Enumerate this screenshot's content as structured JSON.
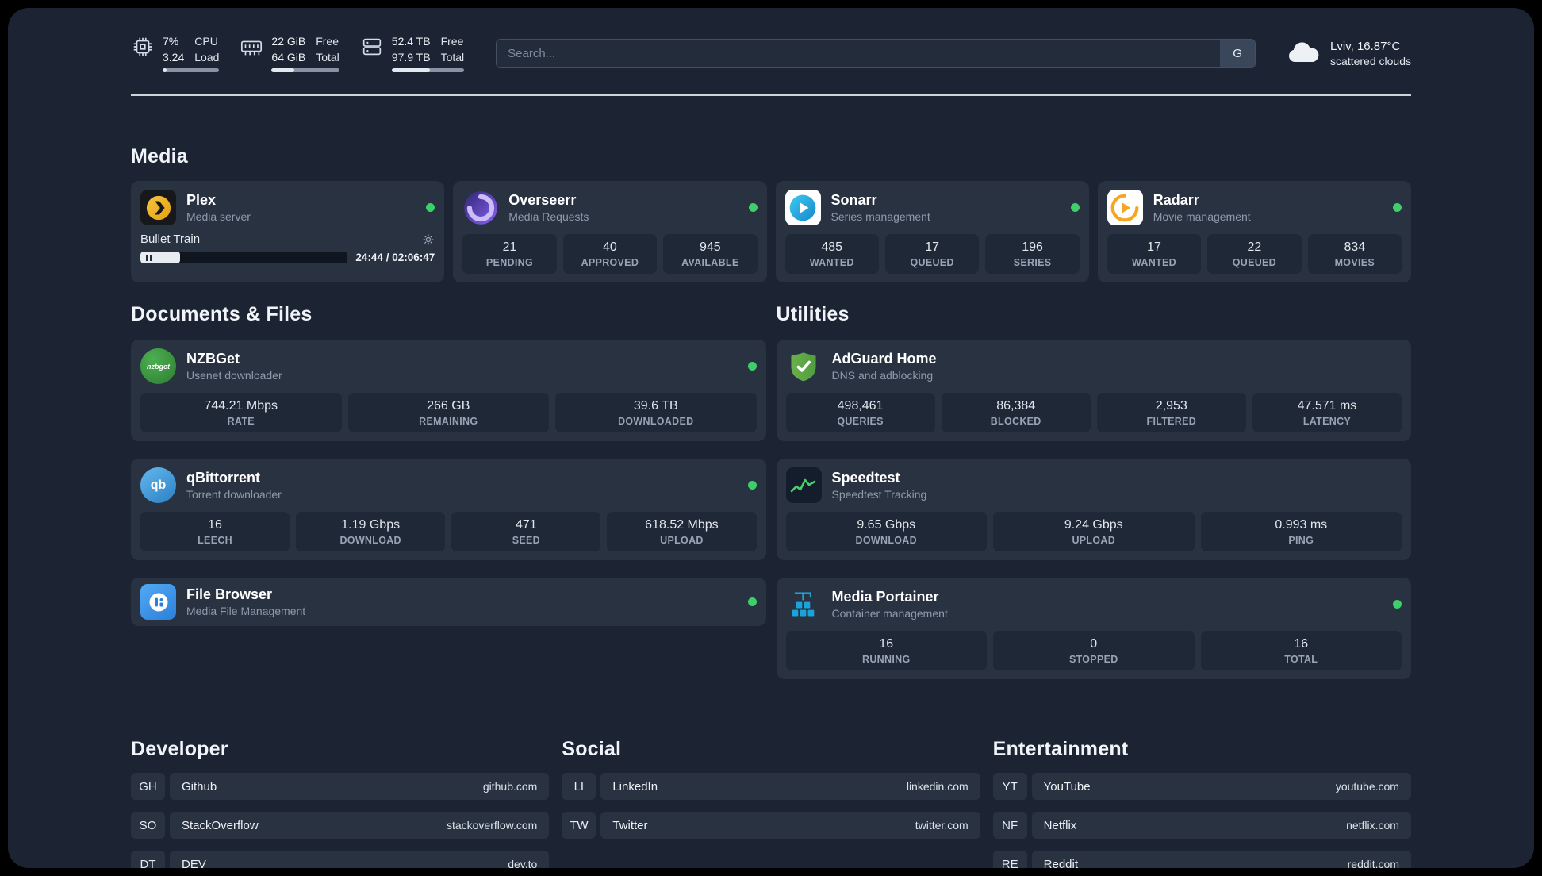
{
  "theme": {
    "panel_bg": "#1c2433",
    "card_bg": "#293241",
    "stat_bg": "#1f2836",
    "green": "#3ecf6a",
    "divider": "#ccd3da",
    "search_bg": "#232c3b",
    "search_border": "#434f63",
    "search_btn": "#3a465a",
    "bar_track": "#8993a5",
    "bar_fill": "#e2e8f0",
    "player_track": "#10161f",
    "text_primary": "#e6eaf0",
    "text_secondary": "#909aab"
  },
  "header": {
    "cpu": {
      "percent": "7%",
      "load": "3.24",
      "label_top": "CPU",
      "label_bottom": "Load",
      "bar_percent": 7
    },
    "ram": {
      "free": "22 GiB",
      "total": "64 GiB",
      "label_free": "Free",
      "label_total": "Total",
      "bar_percent": 34
    },
    "disk": {
      "free": "52.4 TB",
      "total": "97.9 TB",
      "label_free": "Free",
      "label_total": "Total",
      "bar_percent": 53
    },
    "search": {
      "placeholder": "Search...",
      "engine": "G"
    },
    "weather": {
      "location_temp": "Lviv, 16.87°C",
      "condition": "scattered clouds"
    }
  },
  "media": {
    "title": "Media",
    "apps": [
      {
        "name": "Plex",
        "subtitle": "Media server",
        "player": {
          "title": "Bullet Train",
          "time": "24:44 / 02:06:47",
          "progress_percent": 19
        }
      },
      {
        "name": "Overseerr",
        "subtitle": "Media Requests",
        "stats": [
          {
            "value": "21",
            "label": "PENDING"
          },
          {
            "value": "40",
            "label": "APPROVED"
          },
          {
            "value": "945",
            "label": "AVAILABLE"
          }
        ]
      },
      {
        "name": "Sonarr",
        "subtitle": "Series management",
        "stats": [
          {
            "value": "485",
            "label": "WANTED"
          },
          {
            "value": "17",
            "label": "QUEUED"
          },
          {
            "value": "196",
            "label": "SERIES"
          }
        ]
      },
      {
        "name": "Radarr",
        "subtitle": "Movie management",
        "stats": [
          {
            "value": "17",
            "label": "WANTED"
          },
          {
            "value": "22",
            "label": "QUEUED"
          },
          {
            "value": "834",
            "label": "MOVIES"
          }
        ]
      }
    ]
  },
  "documents": {
    "title": "Documents & Files",
    "apps": [
      {
        "name": "NZBGet",
        "subtitle": "Usenet downloader",
        "stats": [
          {
            "value": "744.21 Mbps",
            "label": "RATE"
          },
          {
            "value": "266 GB",
            "label": "REMAINING"
          },
          {
            "value": "39.6 TB",
            "label": "DOWNLOADED"
          }
        ]
      },
      {
        "name": "qBittorrent",
        "subtitle": "Torrent downloader",
        "stats": [
          {
            "value": "16",
            "label": "LEECH"
          },
          {
            "value": "1.19 Gbps",
            "label": "DOWNLOAD"
          },
          {
            "value": "471",
            "label": "SEED"
          },
          {
            "value": "618.52 Mbps",
            "label": "UPLOAD"
          }
        ]
      },
      {
        "name": "File Browser",
        "subtitle": "Media File Management"
      }
    ]
  },
  "utilities": {
    "title": "Utilities",
    "apps": [
      {
        "name": "AdGuard Home",
        "subtitle": "DNS and adblocking",
        "stats": [
          {
            "value": "498,461",
            "label": "QUERIES"
          },
          {
            "value": "86,384",
            "label": "BLOCKED"
          },
          {
            "value": "2,953",
            "label": "FILTERED"
          },
          {
            "value": "47.571 ms",
            "label": "LATENCY"
          }
        ]
      },
      {
        "name": "Speedtest",
        "subtitle": "Speedtest Tracking",
        "stats": [
          {
            "value": "9.65 Gbps",
            "label": "DOWNLOAD"
          },
          {
            "value": "9.24 Gbps",
            "label": "UPLOAD"
          },
          {
            "value": "0.993 ms",
            "label": "PING"
          }
        ]
      },
      {
        "name": "Media Portainer",
        "subtitle": "Container management",
        "stats": [
          {
            "value": "16",
            "label": "RUNNING"
          },
          {
            "value": "0",
            "label": "STOPPED"
          },
          {
            "value": "16",
            "label": "TOTAL"
          }
        ]
      }
    ]
  },
  "bookmarks": [
    {
      "title": "Developer",
      "items": [
        {
          "abbr": "GH",
          "name": "Github",
          "url": "github.com"
        },
        {
          "abbr": "SO",
          "name": "StackOverflow",
          "url": "stackoverflow.com"
        },
        {
          "abbr": "DT",
          "name": "DEV",
          "url": "dev.to"
        }
      ]
    },
    {
      "title": "Social",
      "items": [
        {
          "abbr": "LI",
          "name": "LinkedIn",
          "url": "linkedin.com"
        },
        {
          "abbr": "TW",
          "name": "Twitter",
          "url": "twitter.com"
        }
      ]
    },
    {
      "title": "Entertainment",
      "items": [
        {
          "abbr": "YT",
          "name": "YouTube",
          "url": "youtube.com"
        },
        {
          "abbr": "NF",
          "name": "Netflix",
          "url": "netflix.com"
        },
        {
          "abbr": "RE",
          "name": "Reddit",
          "url": "reddit.com"
        }
      ]
    }
  ],
  "icons": {
    "cpu": "cpu-chip",
    "ram": "memory-stick",
    "disk": "drive-stack",
    "weather": "cloud",
    "settings": "gear",
    "pause": "pause",
    "status": "green-dot"
  }
}
